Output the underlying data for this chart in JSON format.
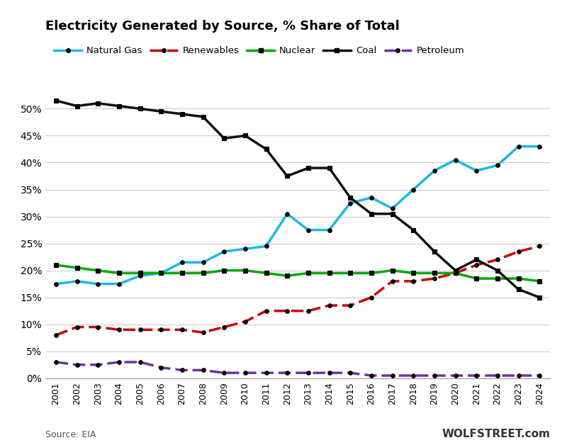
{
  "title": "Electricity Generated by Source, % Share of Total",
  "years": [
    2001,
    2002,
    2003,
    2004,
    2005,
    2006,
    2007,
    2008,
    2009,
    2010,
    2011,
    2012,
    2013,
    2014,
    2015,
    2016,
    2017,
    2018,
    2019,
    2020,
    2021,
    2022,
    2023,
    2024
  ],
  "natural_gas": [
    17.5,
    18.0,
    17.5,
    17.5,
    19.0,
    19.5,
    21.5,
    21.5,
    23.5,
    24.0,
    24.5,
    30.5,
    27.5,
    27.5,
    32.5,
    33.5,
    31.5,
    35.0,
    38.5,
    40.5,
    38.5,
    39.5,
    43.0,
    43.0
  ],
  "renewables": [
    8.0,
    9.5,
    9.5,
    9.0,
    9.0,
    9.0,
    9.0,
    8.5,
    9.5,
    10.5,
    12.5,
    12.5,
    12.5,
    13.5,
    13.5,
    15.0,
    18.0,
    18.0,
    18.5,
    19.5,
    21.0,
    22.0,
    23.5,
    24.5
  ],
  "nuclear": [
    21.0,
    20.5,
    20.0,
    19.5,
    19.5,
    19.5,
    19.5,
    19.5,
    20.0,
    20.0,
    19.5,
    19.0,
    19.5,
    19.5,
    19.5,
    19.5,
    20.0,
    19.5,
    19.5,
    19.5,
    18.5,
    18.5,
    18.5,
    18.0
  ],
  "coal": [
    51.5,
    50.5,
    51.0,
    50.5,
    50.0,
    49.5,
    49.0,
    48.5,
    44.5,
    45.0,
    42.5,
    37.5,
    39.0,
    39.0,
    33.5,
    30.5,
    30.5,
    27.5,
    23.5,
    20.0,
    22.0,
    20.0,
    16.5,
    15.0
  ],
  "petroleum": [
    3.0,
    2.5,
    2.5,
    3.0,
    3.0,
    2.0,
    1.5,
    1.5,
    1.0,
    1.0,
    1.0,
    1.0,
    1.0,
    1.0,
    1.0,
    0.5,
    0.5,
    0.5,
    0.5,
    0.5,
    0.5,
    0.5,
    0.5,
    0.5
  ],
  "colors": {
    "natural_gas": "#1ab7ea",
    "renewables": "#cc0000",
    "nuclear": "#00aa00",
    "coal": "#111111",
    "petroleum": "#7030a0"
  },
  "source_text": "Source: EIA",
  "watermark": "WOLFSTREET.com",
  "ylim": [
    0,
    52
  ],
  "yticks": [
    0,
    5,
    10,
    15,
    20,
    25,
    30,
    35,
    40,
    45,
    50
  ]
}
